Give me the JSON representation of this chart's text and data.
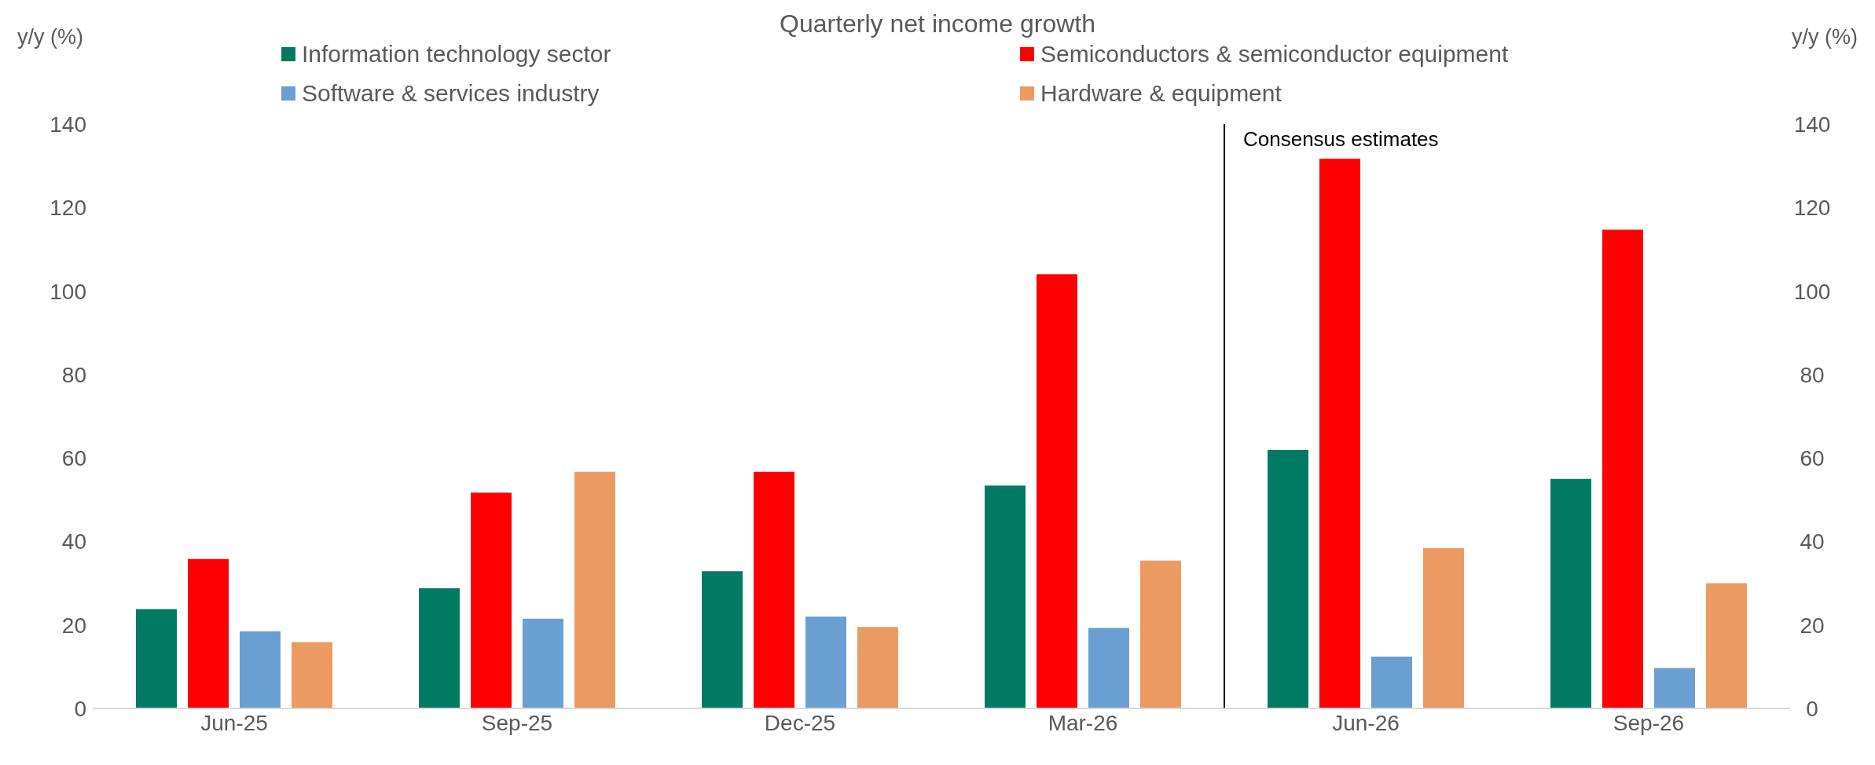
{
  "chart_data": {
    "type": "bar",
    "title": "Quarterly net income growth",
    "ylabel": "y/y (%)",
    "y2label": "y/y (%)",
    "categories": [
      "Jun-25",
      "Sep-25",
      "Dec-25",
      "Mar-26",
      "Jun-26",
      "Sep-26"
    ],
    "series": [
      {
        "name": "Information technology sector",
        "color": "#007a63",
        "values": [
          23.8,
          28.8,
          32.9,
          53.4,
          61.9,
          55
        ]
      },
      {
        "name": "Semiconductors & semiconductor equipment",
        "color": "#ff0000",
        "values": [
          35.8,
          51.7,
          56.7,
          104,
          131.7,
          114.7
        ]
      },
      {
        "name": "Software & services industry",
        "color": "#699fd1",
        "values": [
          18.5,
          21.5,
          22,
          19.3,
          12.4,
          9.7
        ]
      },
      {
        "name": "Hardware & equipment",
        "color": "#eb9b62",
        "values": [
          15.9,
          56.7,
          19.5,
          35.4,
          38.4,
          30
        ]
      }
    ],
    "ylim": [
      0,
      140
    ],
    "yticks": [
      0,
      20,
      40,
      60,
      80,
      100,
      120,
      140
    ],
    "y2lim": [
      0,
      140
    ],
    "y2ticks": [
      0,
      20,
      40,
      60,
      80,
      100,
      120,
      140
    ],
    "annotations": [
      "Consensus estimates"
    ],
    "grid": false,
    "legend": "top"
  }
}
